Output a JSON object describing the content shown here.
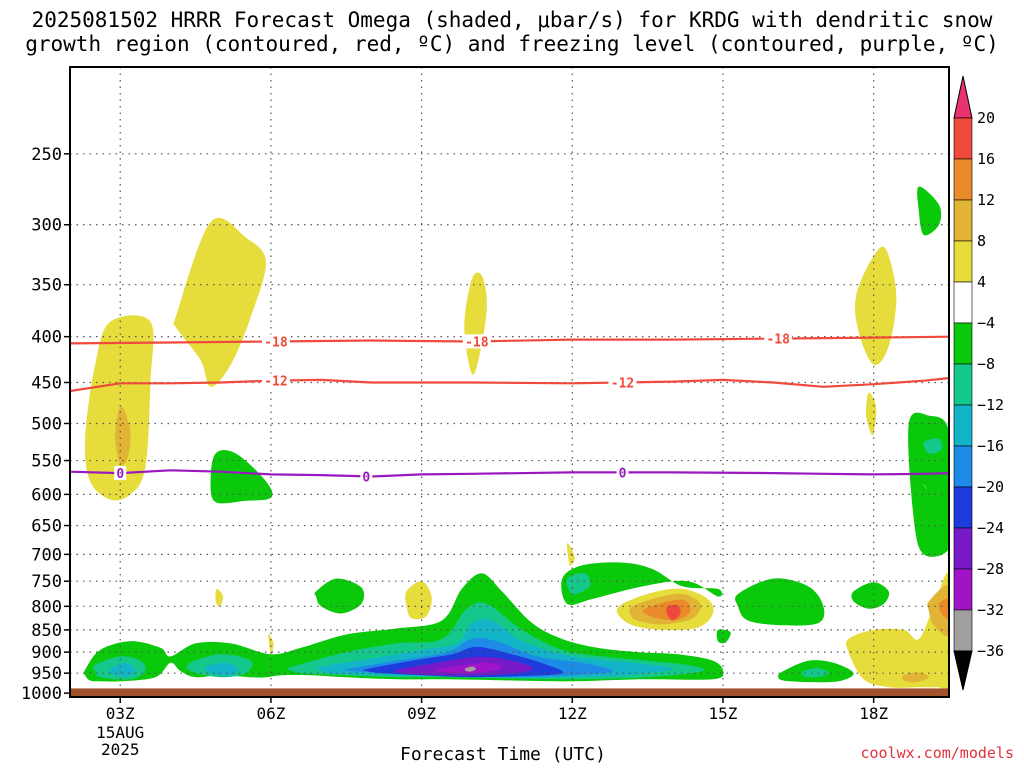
{
  "title": {
    "line1": "2025081502 HRRR Forecast Omega (shaded, μbar/s) for KRDG with dendritic snow",
    "line2": "growth region (contoured, red, ºC) and freezing level (contoured, purple, ºC)"
  },
  "credit": "coolwx.com/models",
  "chart_data": {
    "type": "heatmap",
    "title": "2025081502 HRRR Forecast Omega (shaded, μbar/s) for KRDG with dendritic snow growth region (contoured, red, ºC) and freezing level (contoured, purple, ºC)",
    "xlabel": "Forecast Time (UTC)",
    "ylabel": "",
    "x_ticks": [
      "03Z",
      "06Z",
      "09Z",
      "12Z",
      "15Z",
      "18Z"
    ],
    "x_tick_hours": [
      3,
      6,
      9,
      12,
      15,
      18
    ],
    "x_date_label": [
      "15AUG",
      "2025"
    ],
    "xlim": [
      2,
      19.5
    ],
    "y_ticks": [
      250,
      300,
      350,
      400,
      450,
      500,
      550,
      600,
      650,
      700,
      750,
      800,
      850,
      900,
      950,
      1000
    ],
    "ylim": [
      200,
      1010
    ],
    "y_scale": "log",
    "grid": true,
    "colorbar": {
      "labels": [
        "20",
        "16",
        "12",
        "8",
        "4",
        "−4",
        "−8",
        "−12",
        "−16",
        "−20",
        "−24",
        "−28",
        "−32",
        "−36"
      ],
      "colors": [
        "#e8336e",
        "#f04a3c",
        "#ea8a2a",
        "#e2b435",
        "#e6dc3c",
        "#ffffff",
        "#0ac80a",
        "#14c88c",
        "#14b4c8",
        "#1e8ce6",
        "#1e3cdc",
        "#7819c8",
        "#a014c8",
        "#a0a0a0",
        "#000000"
      ]
    },
    "contours": [
      {
        "name": "-18",
        "color": "#f04a3c",
        "x": [
          2,
          4,
          6,
          8,
          10,
          12,
          14,
          16,
          18,
          19.5
        ],
        "p": [
          407,
          406,
          405,
          404,
          405,
          403,
          403,
          402,
          401,
          400
        ]
      },
      {
        "name": "-12",
        "color": "#f04a3c",
        "x": [
          2,
          3,
          4,
          5,
          6,
          7,
          8,
          10,
          12,
          14,
          15,
          16,
          17,
          18,
          19,
          19.5
        ],
        "p": [
          460,
          451,
          451,
          450,
          448,
          447,
          450,
          450,
          451,
          449,
          447,
          450,
          455,
          452,
          448,
          445
        ]
      },
      {
        "name": "0",
        "color": "#9a18c0",
        "x": [
          2,
          3,
          4,
          5,
          6,
          7,
          8,
          9,
          10,
          12,
          14,
          16,
          17,
          18,
          19,
          19.5
        ],
        "p": [
          566,
          568,
          564,
          566,
          570,
          571,
          573,
          570,
          569,
          567,
          567,
          568,
          569,
          570,
          569,
          568
        ]
      }
    ],
    "contour_label_positions": {
      "-18": [
        6.1,
        10.1,
        16.1
      ],
      "-12": [
        6.1,
        13.0
      ],
      "0": [
        3.0,
        7.9,
        13.0
      ]
    },
    "shaded_regions": [
      {
        "name": "omega+4-8",
        "color": "#e6dc3c",
        "x": [
          2.8,
          3.6,
          3.6,
          3.5,
          3.2,
          2.8,
          2.4,
          2.3,
          2.5
        ],
        "p": [
          385,
          385,
          450,
          560,
          600,
          608,
          580,
          520,
          430
        ]
      },
      {
        "name": "omega+8-12",
        "color": "#e2b435",
        "x": [
          2.95,
          3.05,
          3.2,
          3.15,
          3.0,
          2.9
        ],
        "p": [
          488,
          480,
          510,
          545,
          555,
          520
        ]
      },
      {
        "name": "omega+4-8",
        "color": "#e6dc3c",
        "x": [
          4.1,
          4.8,
          5.5,
          5.9,
          5.6,
          5.2,
          4.8,
          4.6,
          4.1
        ],
        "p": [
          381,
          298,
          310,
          330,
          380,
          430,
          455,
          425,
          390
        ]
      },
      {
        "name": "omega+4-8",
        "color": "#e6dc3c",
        "x": [
          10.0,
          10.2,
          10.3,
          10.15,
          10.0,
          9.85
        ],
        "p": [
          345,
          342,
          370,
          420,
          440,
          390
        ]
      },
      {
        "name": "omega+4-8",
        "color": "#e6dc3c",
        "x": [
          18.0,
          18.25,
          18.45,
          18.3,
          18.0,
          17.7,
          17.65
        ],
        "p": [
          325,
          320,
          360,
          410,
          430,
          395,
          360
        ]
      },
      {
        "name": "omega+4-8",
        "color": "#e6dc3c",
        "x": [
          17.9,
          18.05,
          17.98,
          17.85
        ],
        "p": [
          462,
          480,
          515,
          490
        ]
      },
      {
        "name": "omega-4-8",
        "color": "#0ac80a",
        "x": [
          18.9,
          19.3,
          19.3,
          19.0,
          18.9
        ],
        "p": [
          272,
          285,
          300,
          308,
          290
        ]
      },
      {
        "name": "omega-4-8",
        "color": "#0ac80a",
        "x": [
          4.9,
          5.3,
          5.9,
          6.0,
          5.5,
          4.9,
          4.8
        ],
        "p": [
          540,
          540,
          580,
          605,
          610,
          612,
          580
        ]
      },
      {
        "name": "omega+4-8",
        "color": "#e6dc3c",
        "x": [
          4.92,
          5.05,
          4.98,
          4.9
        ],
        "p": [
          765,
          780,
          800,
          790
        ]
      },
      {
        "name": "omega+4-8",
        "color": "#e6dc3c",
        "x": [
          5.95,
          6.05,
          6.0
        ],
        "p": [
          860,
          880,
          905
        ]
      },
      {
        "name": "omega+4-8",
        "color": "#e6dc3c",
        "x": [
          8.7,
          9.0,
          9.2,
          9.1,
          8.8,
          8.7
        ],
        "p": [
          770,
          750,
          780,
          820,
          825,
          800
        ]
      },
      {
        "name": "omega+4-8",
        "color": "#e6dc3c",
        "x": [
          11.9,
          12.05,
          11.95
        ],
        "p": [
          680,
          705,
          720
        ]
      },
      {
        "name": "omega-4-8",
        "color": "#0ac80a",
        "x": [
          6.9,
          7.3,
          7.8,
          7.8,
          7.4,
          7.0,
          6.9
        ],
        "p": [
          770,
          745,
          762,
          795,
          815,
          800,
          780
        ]
      },
      {
        "name": "omega-4-8",
        "color": "#0ac80a",
        "x": [
          11.8,
          12.2,
          13.0,
          13.6,
          14.2,
          14.9,
          14.9,
          14.3,
          13.4,
          12.4,
          11.9
        ],
        "p": [
          745,
          720,
          715,
          727,
          760,
          765,
          780,
          750,
          760,
          785,
          795
        ]
      },
      {
        "name": "omega-8-12",
        "color": "#14c88c",
        "x": [
          11.9,
          12.25,
          12.35,
          12.0
        ],
        "p": [
          745,
          735,
          760,
          775
        ]
      },
      {
        "name": "omega-4-8",
        "color": "#0ac80a",
        "x": [
          15.3,
          16.0,
          16.7,
          17.0,
          16.9,
          16.2,
          15.5,
          15.3
        ],
        "p": [
          775,
          745,
          760,
          800,
          835,
          840,
          830,
          800
        ]
      },
      {
        "name": "omega-4-8",
        "color": "#0ac80a",
        "x": [
          17.6,
          18.0,
          18.3,
          18.2,
          17.9,
          17.6
        ],
        "p": [
          770,
          752,
          770,
          795,
          805,
          790
        ]
      },
      {
        "name": "omega-4-8",
        "color": "#0ac80a",
        "x": [
          14.9,
          15.15,
          15.05,
          14.9
        ],
        "p": [
          850,
          855,
          878,
          875
        ]
      },
      {
        "name": "omega-4-8",
        "color": "#0ac80a",
        "x": [
          18.7,
          19.1,
          19.5,
          19.5,
          19.0,
          19.2,
          19.5,
          19.5,
          19.0,
          18.8
        ],
        "p": [
          500,
          490,
          510,
          630,
          585,
          605,
          620,
          690,
          700,
          640
        ]
      },
      {
        "name": "omega-8-12",
        "color": "#14c88c",
        "x": [
          19.0,
          19.3,
          19.35,
          19.1
        ],
        "p": [
          525,
          520,
          535,
          540
        ]
      },
      {
        "name": "omega-4-8",
        "color": "#0ac80a",
        "x": [
          2.3,
          2.6,
          3.2,
          3.8,
          4.0,
          4.5,
          5.2,
          6.0,
          6.6,
          7.5,
          8.5,
          9.4,
          9.8,
          10.2,
          10.6,
          11.2,
          11.8,
          12.5,
          13.3,
          14.1,
          14.8,
          15.0,
          14.8,
          13.4,
          12.0,
          10.8,
          9.5,
          8.5,
          7.5,
          6.8,
          6.2,
          5.9,
          5.6,
          5.0,
          4.5,
          4.2,
          4.0,
          3.7,
          3.0,
          2.6,
          2.4,
          2.3
        ],
        "p": [
          942,
          895,
          875,
          890,
          910,
          880,
          880,
          905,
          890,
          860,
          847,
          830,
          765,
          735,
          770,
          835,
          870,
          890,
          900,
          905,
          920,
          945,
          965,
          965,
          970,
          968,
          965,
          965,
          960,
          955,
          955,
          960,
          960,
          955,
          960,
          945,
          925,
          960,
          970,
          970,
          968,
          955
        ]
      },
      {
        "name": "omega-8-12",
        "color": "#14c88c",
        "x": [
          2.5,
          3.0,
          3.4,
          3.5,
          3.2,
          2.6,
          2.5
        ],
        "p": [
          930,
          910,
          920,
          945,
          965,
          960,
          945
        ]
      },
      {
        "name": "omega-12-16",
        "color": "#14b4c8",
        "x": [
          2.8,
          3.1,
          3.3,
          3.15,
          2.85
        ],
        "p": [
          940,
          925,
          942,
          958,
          952
        ]
      },
      {
        "name": "omega-8-12",
        "color": "#14c88c",
        "x": [
          4.4,
          5.0,
          5.6,
          5.5,
          5.0,
          4.4
        ],
        "p": [
          925,
          905,
          920,
          950,
          960,
          945
        ]
      },
      {
        "name": "omega-12-16",
        "color": "#14b4c8",
        "x": [
          4.7,
          5.1,
          5.35,
          5.2,
          4.8
        ],
        "p": [
          935,
          925,
          940,
          955,
          950
        ]
      },
      {
        "name": "omega-8-12",
        "color": "#14c88c",
        "x": [
          6.4,
          7.5,
          8.5,
          9.4,
          9.9,
          10.3,
          11.0,
          11.8,
          12.6,
          13.5,
          14.3,
          14.6,
          13.5,
          12.0,
          10.8,
          9.5,
          8.5,
          7.5,
          6.6,
          6.4
        ],
        "p": [
          935,
          900,
          880,
          870,
          805,
          795,
          850,
          895,
          910,
          920,
          930,
          945,
          960,
          965,
          963,
          960,
          960,
          955,
          950,
          943
        ]
      },
      {
        "name": "omega-12-16",
        "color": "#14b4c8",
        "x": [
          7.0,
          8.0,
          9.0,
          9.7,
          10.0,
          10.4,
          11.0,
          12.0,
          13.2,
          14.0,
          13.0,
          12.0,
          10.8,
          9.4,
          8.2,
          7.2,
          7.0
        ],
        "p": [
          935,
          915,
          895,
          880,
          835,
          830,
          875,
          910,
          925,
          940,
          955,
          960,
          962,
          958,
          955,
          950,
          943
        ]
      },
      {
        "name": "omega-16-20",
        "color": "#1e8ce6",
        "x": [
          7.5,
          8.5,
          9.5,
          10.0,
          10.5,
          11.3,
          12.2,
          12.8,
          12.0,
          10.8,
          9.5,
          8.4,
          7.6,
          7.5
        ],
        "p": [
          940,
          920,
          900,
          870,
          875,
          910,
          925,
          945,
          955,
          960,
          955,
          950,
          945,
          942
        ]
      },
      {
        "name": "omega-20-24",
        "color": "#1e3cdc",
        "x": [
          7.9,
          8.8,
          9.6,
          10.1,
          10.8,
          11.5,
          11.8,
          11.0,
          10.0,
          9.0,
          8.2,
          7.9
        ],
        "p": [
          940,
          920,
          905,
          888,
          905,
          930,
          950,
          957,
          960,
          955,
          950,
          945
        ]
      },
      {
        "name": "omega-24-28",
        "color": "#7819c8",
        "x": [
          8.5,
          9.3,
          10.0,
          10.6,
          11.2,
          11.0,
          10.2,
          9.3,
          8.6,
          8.5
        ],
        "p": [
          942,
          925,
          912,
          915,
          935,
          948,
          955,
          955,
          950,
          945
        ]
      },
      {
        "name": "omega-28-32",
        "color": "#a014c8",
        "x": [
          9.3,
          9.9,
          10.3,
          10.6,
          10.4,
          9.9,
          9.4
        ],
        "p": [
          940,
          930,
          925,
          935,
          945,
          950,
          947
        ]
      },
      {
        "name": "omega-32-36",
        "color": "#a0a0a0",
        "x": [
          9.88,
          10.02,
          10.08,
          9.98,
          9.88
        ],
        "p": [
          938,
          934,
          940,
          946,
          944
        ]
      },
      {
        "name": "omega-4-8",
        "color": "#0ac80a",
        "x": [
          16.2,
          16.7,
          17.2,
          17.6,
          17.3,
          16.7,
          16.2,
          16.1
        ],
        "p": [
          945,
          920,
          925,
          950,
          970,
          972,
          968,
          958
        ]
      },
      {
        "name": "omega-8-12",
        "color": "#14c88c",
        "x": [
          16.6,
          16.9,
          17.1,
          16.85,
          16.6
        ],
        "p": [
          945,
          938,
          950,
          960,
          957
        ]
      },
      {
        "name": "omega+4-8",
        "color": "#e6dc3c",
        "x": [
          13.0,
          13.6,
          14.2,
          14.7,
          14.8,
          14.5,
          13.8,
          13.2,
          12.9
        ],
        "p": [
          795,
          772,
          765,
          785,
          815,
          845,
          850,
          840,
          815
        ]
      },
      {
        "name": "omega+8-12",
        "color": "#e2b435",
        "x": [
          13.2,
          13.7,
          14.2,
          14.55,
          14.4,
          13.8,
          13.3,
          13.15
        ],
        "p": [
          800,
          782,
          775,
          795,
          825,
          838,
          830,
          815
        ]
      },
      {
        "name": "omega+12-16",
        "color": "#ea8a2a",
        "x": [
          13.45,
          13.9,
          14.25,
          14.35,
          14.1,
          13.7,
          13.45
        ],
        "p": [
          805,
          790,
          788,
          810,
          828,
          825,
          815
        ]
      },
      {
        "name": "omega+16-20",
        "color": "#f04a3c",
        "x": [
          13.9,
          14.1,
          14.15,
          14.0,
          13.88
        ],
        "p": [
          800,
          798,
          815,
          830,
          815
        ]
      },
      {
        "name": "omega+4-8",
        "color": "#e6dc3c",
        "x": [
          17.5,
          18.0,
          18.6,
          18.9,
          19.2,
          19.5,
          19.5,
          19.3,
          18.9,
          18.3,
          17.8,
          17.5
        ],
        "p": [
          870,
          850,
          850,
          870,
          800,
          740,
          985,
          985,
          985,
          985,
          965,
          900
        ]
      },
      {
        "name": "omega+8-12",
        "color": "#e2b435",
        "x": [
          19.1,
          19.5,
          19.5,
          19.2,
          19.1
        ],
        "p": [
          790,
          760,
          860,
          840,
          810
        ]
      },
      {
        "name": "omega+12-16",
        "color": "#ea8a2a",
        "x": [
          19.3,
          19.5,
          19.5,
          19.35
        ],
        "p": [
          795,
          785,
          825,
          815
        ]
      },
      {
        "name": "omega+8-12",
        "color": "#e2b435",
        "x": [
          18.6,
          18.9,
          19.1,
          18.85,
          18.6
        ],
        "p": [
          955,
          948,
          960,
          972,
          968
        ]
      }
    ],
    "terrain": {
      "color": "#a0522d",
      "p_top": 988
    }
  }
}
